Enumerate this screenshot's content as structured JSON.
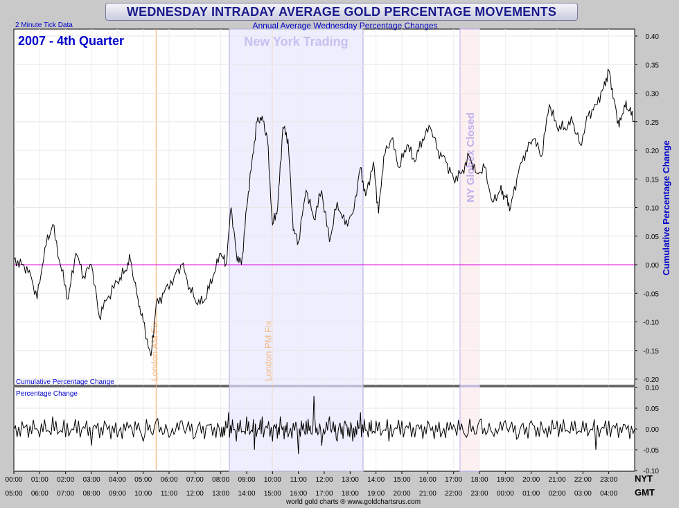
{
  "header": {
    "title": "WEDNESDAY INTRADAY AVERAGE GOLD PERCENTAGE MOVEMENTS"
  },
  "top_left_note": "2 Minute Tick Data",
  "subtitle": "Annual Average Wednesday Percentage Changes",
  "period_label": "2007 - 4th Quarter",
  "footer": "world gold charts ® www.goldchartsrus.com",
  "colors": {
    "navy": "#0000cc",
    "magenta": "#e000e0",
    "band": "#eeeeff",
    "orange": "#f4a460",
    "lavender": "#c0b0ee"
  },
  "chart_data": [
    {
      "type": "line",
      "title": "Cumulative Percentage Change",
      "ylabel": "Cumulative Percentage Change",
      "ylim": [
        -0.2,
        0.4
      ],
      "yticks": [
        "0.40",
        "0.35",
        "0.30",
        "0.25",
        "0.20",
        "0.15",
        "0.10",
        "0.05",
        "0.00",
        "-0.05",
        "-0.10",
        "-0.15",
        "-0.20"
      ],
      "x_nyt": [
        "00:00",
        "01:00",
        "02:00",
        "03:00",
        "04:00",
        "05:00",
        "06:00",
        "07:00",
        "08:00",
        "09:00",
        "10:00",
        "11:00",
        "12:00",
        "13:00",
        "14:00",
        "15:00",
        "16:00",
        "17:00",
        "18:00",
        "19:00",
        "20:00",
        "21:00",
        "22:00",
        "23:00"
      ],
      "x_gmt": [
        "05:00",
        "06:00",
        "07:00",
        "08:00",
        "09:00",
        "10:00",
        "11:00",
        "12:00",
        "13:00",
        "14:00",
        "15:00",
        "16:00",
        "17:00",
        "18:00",
        "19:00",
        "20:00",
        "21:00",
        "22:00",
        "23:00",
        "00:00",
        "01:00",
        "02:00",
        "03:00",
        "04:00"
      ],
      "axis_tz": [
        "NYT",
        "GMT"
      ],
      "zero_line": 0,
      "annotations": {
        "new_york_trading": {
          "label": "New York Trading",
          "start_nyt": 8.33,
          "end_nyt": 13.5
        },
        "london_am_fix": {
          "label": "London AM Fix",
          "at_nyt": 5.5
        },
        "london_pm_fix": {
          "label": "London PM Fix",
          "at_nyt": 10.0
        },
        "ny_globex_closed": {
          "label": "NY Globex Closed",
          "start_nyt": 17.25,
          "end_nyt": 18.0
        }
      },
      "series": [
        {
          "points": [
            [
              0.0,
              0.01
            ],
            [
              0.3,
              0.0
            ],
            [
              0.6,
              -0.01
            ],
            [
              0.9,
              -0.06
            ],
            [
              1.2,
              0.03
            ],
            [
              1.5,
              0.07
            ],
            [
              1.8,
              0.0
            ],
            [
              2.1,
              -0.06
            ],
            [
              2.4,
              0.02
            ],
            [
              2.7,
              -0.02
            ],
            [
              3.0,
              0.0
            ],
            [
              3.3,
              -0.09
            ],
            [
              3.6,
              -0.06
            ],
            [
              4.0,
              -0.03
            ],
            [
              4.3,
              -0.01
            ],
            [
              4.5,
              0.01
            ],
            [
              4.8,
              -0.06
            ],
            [
              5.0,
              -0.1
            ],
            [
              5.3,
              -0.16
            ],
            [
              5.5,
              -0.07
            ],
            [
              5.8,
              -0.05
            ],
            [
              6.2,
              -0.02
            ],
            [
              6.5,
              0.0
            ],
            [
              6.8,
              -0.04
            ],
            [
              7.1,
              -0.07
            ],
            [
              7.4,
              -0.06
            ],
            [
              7.7,
              -0.02
            ],
            [
              8.0,
              0.02
            ],
            [
              8.2,
              0.0
            ],
            [
              8.4,
              0.1
            ],
            [
              8.6,
              0.02
            ],
            [
              8.8,
              0.0
            ],
            [
              9.0,
              0.1
            ],
            [
              9.2,
              0.18
            ],
            [
              9.4,
              0.25
            ],
            [
              9.6,
              0.26
            ],
            [
              9.8,
              0.22
            ],
            [
              10.0,
              0.07
            ],
            [
              10.2,
              0.1
            ],
            [
              10.4,
              0.24
            ],
            [
              10.6,
              0.22
            ],
            [
              10.8,
              0.06
            ],
            [
              11.0,
              0.04
            ],
            [
              11.3,
              0.13
            ],
            [
              11.6,
              0.08
            ],
            [
              11.9,
              0.13
            ],
            [
              12.2,
              0.04
            ],
            [
              12.5,
              0.11
            ],
            [
              12.8,
              0.07
            ],
            [
              13.1,
              0.09
            ],
            [
              13.4,
              0.17
            ],
            [
              13.6,
              0.12
            ],
            [
              13.9,
              0.18
            ],
            [
              14.1,
              0.09
            ],
            [
              14.3,
              0.19
            ],
            [
              14.6,
              0.22
            ],
            [
              14.9,
              0.17
            ],
            [
              15.2,
              0.21
            ],
            [
              15.5,
              0.18
            ],
            [
              15.8,
              0.22
            ],
            [
              16.1,
              0.24
            ],
            [
              16.4,
              0.2
            ],
            [
              16.7,
              0.18
            ],
            [
              17.0,
              0.15
            ],
            [
              17.3,
              0.16
            ],
            [
              17.6,
              0.19
            ],
            [
              17.9,
              0.16
            ],
            [
              18.2,
              0.17
            ],
            [
              18.5,
              0.11
            ],
            [
              18.8,
              0.13
            ],
            [
              19.0,
              0.12
            ],
            [
              19.2,
              0.1
            ],
            [
              19.5,
              0.16
            ],
            [
              19.8,
              0.2
            ],
            [
              20.1,
              0.22
            ],
            [
              20.4,
              0.19
            ],
            [
              20.7,
              0.28
            ],
            [
              21.0,
              0.24
            ],
            [
              21.3,
              0.24
            ],
            [
              21.6,
              0.25
            ],
            [
              21.9,
              0.21
            ],
            [
              22.2,
              0.26
            ],
            [
              22.5,
              0.28
            ],
            [
              22.8,
              0.31
            ],
            [
              23.0,
              0.34
            ],
            [
              23.2,
              0.29
            ],
            [
              23.4,
              0.24
            ],
            [
              23.6,
              0.28
            ],
            [
              23.8,
              0.27
            ],
            [
              24.0,
              0.25
            ]
          ]
        }
      ]
    },
    {
      "type": "line",
      "title": "Percentage Change",
      "ylim": [
        -0.1,
        0.1
      ],
      "yticks": [
        "0.10",
        "0.05",
        "0.00",
        "-0.05",
        "-0.10"
      ],
      "series": [
        {
          "points": [
            [
              0.0,
              0.0
            ],
            [
              0.5,
              0.01
            ],
            [
              1.0,
              -0.02
            ],
            [
              1.5,
              0.03
            ],
            [
              2.0,
              -0.02
            ],
            [
              2.5,
              0.02
            ],
            [
              3.0,
              -0.04
            ],
            [
              3.5,
              0.02
            ],
            [
              4.0,
              -0.02
            ],
            [
              4.5,
              0.01
            ],
            [
              5.0,
              -0.03
            ],
            [
              5.5,
              0.02
            ],
            [
              6.0,
              -0.02
            ],
            [
              6.5,
              0.02
            ],
            [
              7.0,
              -0.02
            ],
            [
              7.5,
              0.01
            ],
            [
              8.0,
              -0.02
            ],
            [
              8.3,
              0.04
            ],
            [
              8.6,
              -0.03
            ],
            [
              9.0,
              0.03
            ],
            [
              9.3,
              -0.05
            ],
            [
              9.6,
              0.03
            ],
            [
              10.0,
              -0.03
            ],
            [
              10.3,
              0.03
            ],
            [
              10.6,
              -0.02
            ],
            [
              11.0,
              -0.06
            ],
            [
              11.3,
              0.02
            ],
            [
              11.6,
              0.08
            ],
            [
              11.9,
              -0.04
            ],
            [
              12.2,
              0.03
            ],
            [
              12.5,
              -0.03
            ],
            [
              12.8,
              0.02
            ],
            [
              13.1,
              -0.03
            ],
            [
              13.4,
              0.04
            ],
            [
              13.7,
              -0.02
            ],
            [
              14.0,
              0.02
            ],
            [
              14.5,
              -0.03
            ],
            [
              15.0,
              0.02
            ],
            [
              15.5,
              -0.02
            ],
            [
              16.0,
              0.02
            ],
            [
              16.5,
              -0.02
            ],
            [
              17.0,
              0.01
            ],
            [
              17.5,
              -0.02
            ],
            [
              18.0,
              0.02
            ],
            [
              18.5,
              -0.01
            ],
            [
              19.0,
              0.02
            ],
            [
              19.5,
              -0.02
            ],
            [
              20.0,
              0.02
            ],
            [
              20.5,
              -0.01
            ],
            [
              21.0,
              0.02
            ],
            [
              21.5,
              -0.01
            ],
            [
              22.0,
              0.02
            ],
            [
              22.5,
              -0.05
            ],
            [
              23.0,
              0.02
            ],
            [
              23.5,
              -0.01
            ],
            [
              24.0,
              0.0
            ]
          ]
        }
      ]
    }
  ]
}
